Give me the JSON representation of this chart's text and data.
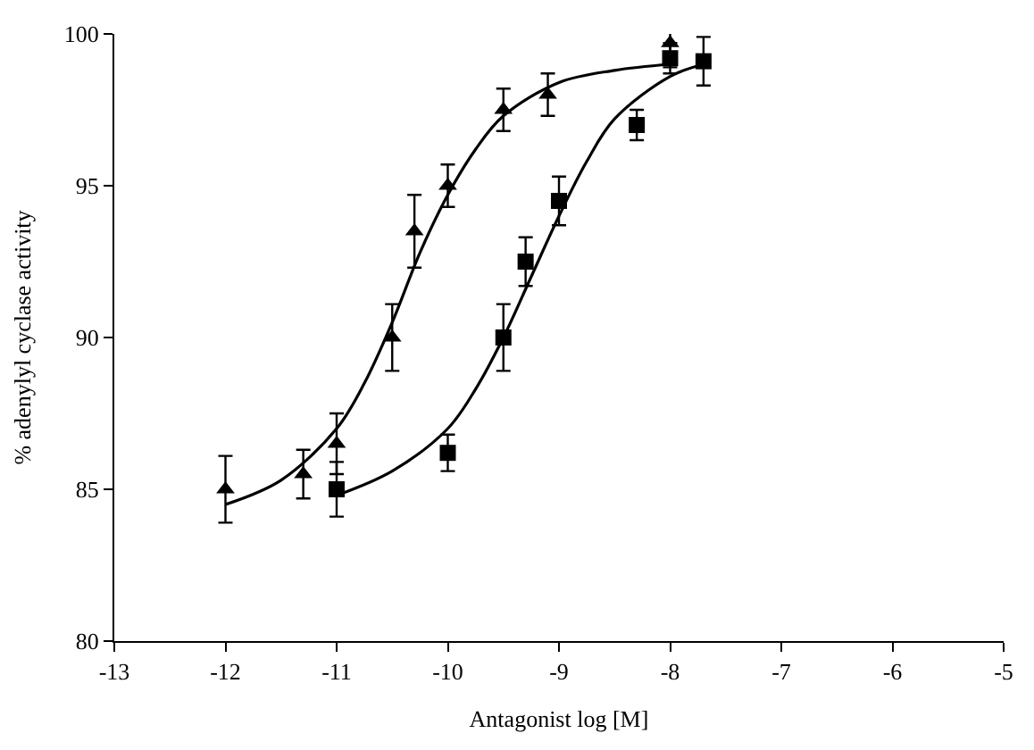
{
  "chart_data": {
    "type": "scatter",
    "xlabel": "Antagonist log [M]",
    "ylabel": "% adenylyl cyclase activity",
    "xlim": [
      -13,
      -5
    ],
    "xticks": [
      -13,
      -12,
      -11,
      -10,
      -9,
      -8,
      -7,
      -6,
      -5
    ],
    "ylim": [
      80,
      100
    ],
    "yticks": [
      80,
      85,
      90,
      95,
      100
    ],
    "grid": false,
    "series": [
      {
        "color": "#000000",
        "marker": "triangle",
        "x": [
          -12,
          -11.3,
          -11,
          -10.5,
          -10.3,
          -10,
          -9.5,
          -9.1,
          -8
        ],
        "values": [
          85.0,
          85.5,
          86.5,
          90.0,
          93.5,
          95.0,
          97.5,
          98.0,
          99.7
        ],
        "errors": [
          1.1,
          0.8,
          1.0,
          1.1,
          1.2,
          0.7,
          0.7,
          0.7,
          0.8
        ]
      },
      {
        "color": "#000000",
        "marker": "square",
        "x": [
          -11,
          -10,
          -9.5,
          -9.3,
          -9.0,
          -8.3,
          -8,
          -7.7
        ],
        "values": [
          85.0,
          86.2,
          90.0,
          92.5,
          94.5,
          97.0,
          99.2,
          99.1
        ],
        "errors": [
          0.9,
          0.6,
          1.1,
          0.8,
          0.8,
          0.5,
          0.5,
          0.8
        ]
      },
      {
        "type": "line",
        "color": "#000000",
        "marker": "none",
        "x": [
          -12,
          -11.5,
          -11,
          -10.75,
          -10.5,
          -10.25,
          -10,
          -9.75,
          -9.5,
          -9,
          -8.5,
          -8
        ],
        "values": [
          84.5,
          85.3,
          87.0,
          88.5,
          90.5,
          92.8,
          94.7,
          96.2,
          97.3,
          98.4,
          98.8,
          99.0
        ]
      },
      {
        "type": "line",
        "color": "#000000",
        "marker": "none",
        "x": [
          -11,
          -10.5,
          -10,
          -9.75,
          -9.5,
          -9.25,
          -9,
          -8.75,
          -8.5,
          -8,
          -7.7
        ],
        "values": [
          84.8,
          85.6,
          87.0,
          88.3,
          90.0,
          92.0,
          94.0,
          95.8,
          97.2,
          98.6,
          99.0
        ]
      }
    ]
  }
}
